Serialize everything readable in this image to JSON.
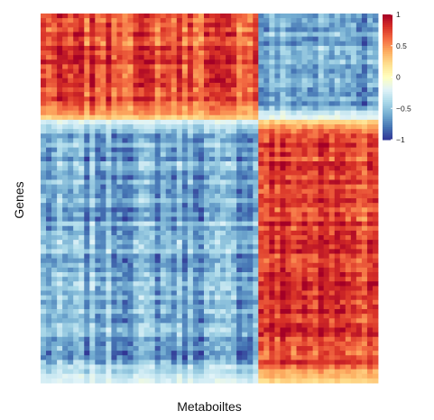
{
  "chart_data": {
    "type": "heatmap",
    "title": "",
    "xlabel": "Metaboiltes",
    "ylabel": "Genes",
    "color_scale": {
      "min": -1,
      "max": 1,
      "ticks": [
        1,
        0.5,
        0,
        -0.5,
        -1
      ],
      "tick_labels": [
        "1",
        "0.5",
        "0",
        "−0.5",
        "−1"
      ],
      "colors": [
        "#313695",
        "#4575b4",
        "#74add1",
        "#abd9e9",
        "#e0f3f8",
        "#ffffbf",
        "#fee090",
        "#fdae61",
        "#f46d43",
        "#d73027",
        "#a50026"
      ]
    },
    "grid": false,
    "legend": "top-right colorbar",
    "n_metabolites": 62,
    "n_genes": 80,
    "column_groups": [
      {
        "columns": 40,
        "label": ""
      },
      {
        "columns": 22,
        "label": ""
      }
    ],
    "row_groups": [
      {
        "rows": 23,
        "label": ""
      },
      {
        "rows": 57,
        "label": ""
      }
    ],
    "block_means": [
      [
        0.72,
        -0.58
      ],
      [
        -0.6,
        0.76
      ]
    ],
    "edge_rows_fade": true
  }
}
